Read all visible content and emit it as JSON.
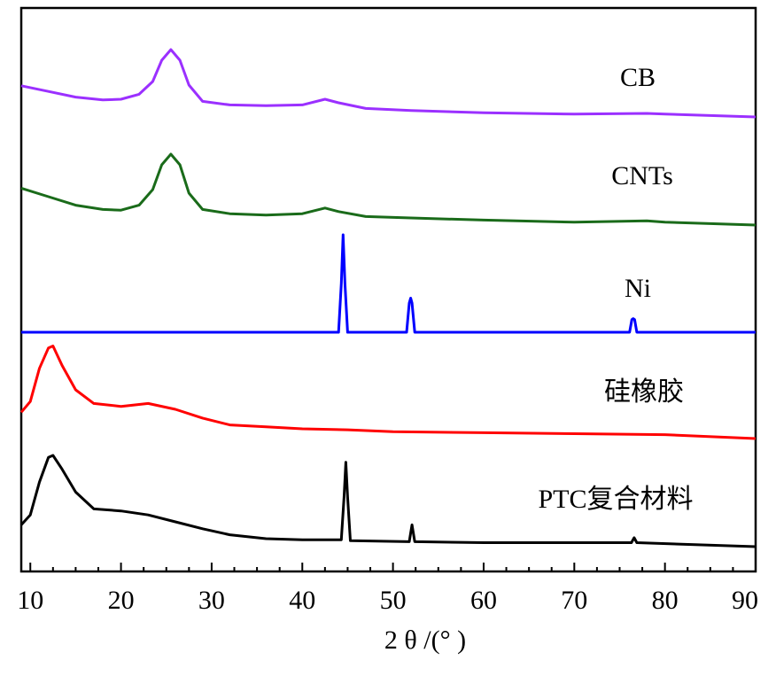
{
  "chart_data": {
    "type": "line",
    "title": "",
    "xlabel": "2 θ /(°  )",
    "ylabel": "",
    "xlim": [
      9,
      90
    ],
    "x_ticks": [
      10,
      20,
      30,
      40,
      50,
      60,
      70,
      80,
      90
    ],
    "y_ticks_shown": false,
    "grid": false,
    "legend": "inline labels at right of each trace",
    "series": [
      {
        "name": "CB",
        "color": "#9b30ff",
        "points": [
          [
            9,
            0.44
          ],
          [
            12,
            0.36
          ],
          [
            15,
            0.28
          ],
          [
            18,
            0.24
          ],
          [
            20,
            0.25
          ],
          [
            22,
            0.32
          ],
          [
            23.5,
            0.5
          ],
          [
            24.5,
            0.8
          ],
          [
            25.5,
            0.95
          ],
          [
            26.5,
            0.8
          ],
          [
            27.5,
            0.45
          ],
          [
            29,
            0.22
          ],
          [
            32,
            0.17
          ],
          [
            36,
            0.16
          ],
          [
            40,
            0.17
          ],
          [
            42.5,
            0.25
          ],
          [
            44,
            0.2
          ],
          [
            47,
            0.12
          ],
          [
            52,
            0.09
          ],
          [
            60,
            0.06
          ],
          [
            70,
            0.04
          ],
          [
            78,
            0.05
          ],
          [
            80,
            0.04
          ],
          [
            90,
            0.0
          ]
        ]
      },
      {
        "name": "CNTs",
        "color": "#1a6b1a",
        "points": [
          [
            9,
            0.52
          ],
          [
            12,
            0.4
          ],
          [
            15,
            0.28
          ],
          [
            18,
            0.22
          ],
          [
            20,
            0.21
          ],
          [
            22,
            0.28
          ],
          [
            23.5,
            0.5
          ],
          [
            24.5,
            0.85
          ],
          [
            25.5,
            1.0
          ],
          [
            26.5,
            0.85
          ],
          [
            27.5,
            0.45
          ],
          [
            29,
            0.22
          ],
          [
            32,
            0.16
          ],
          [
            36,
            0.14
          ],
          [
            40,
            0.16
          ],
          [
            42.5,
            0.24
          ],
          [
            44,
            0.19
          ],
          [
            47,
            0.12
          ],
          [
            52,
            0.1
          ],
          [
            60,
            0.07
          ],
          [
            70,
            0.04
          ],
          [
            78,
            0.06
          ],
          [
            80,
            0.04
          ],
          [
            90,
            0.0
          ]
        ]
      },
      {
        "name": "Ni",
        "color": "#0000ff",
        "points": [
          [
            9,
            0.0
          ],
          [
            44,
            0.0
          ],
          [
            44.3,
            0.5
          ],
          [
            44.5,
            1.0
          ],
          [
            44.7,
            0.5
          ],
          [
            45,
            0.0
          ],
          [
            51.5,
            0.0
          ],
          [
            51.8,
            0.3
          ],
          [
            51.95,
            0.35
          ],
          [
            52.1,
            0.3
          ],
          [
            52.4,
            0.0
          ],
          [
            76.1,
            0.0
          ],
          [
            76.35,
            0.13
          ],
          [
            76.5,
            0.14
          ],
          [
            76.65,
            0.13
          ],
          [
            76.9,
            0.0
          ],
          [
            90,
            0.0
          ]
        ]
      },
      {
        "name": "硅橡胶",
        "color": "#ff0000",
        "points": [
          [
            9,
            0.27
          ],
          [
            10,
            0.38
          ],
          [
            11,
            0.72
          ],
          [
            12,
            0.93
          ],
          [
            12.5,
            0.95
          ],
          [
            13.5,
            0.75
          ],
          [
            15,
            0.5
          ],
          [
            17,
            0.36
          ],
          [
            20,
            0.33
          ],
          [
            23,
            0.36
          ],
          [
            26,
            0.3
          ],
          [
            29,
            0.21
          ],
          [
            32,
            0.14
          ],
          [
            36,
            0.12
          ],
          [
            40,
            0.1
          ],
          [
            45,
            0.09
          ],
          [
            50,
            0.07
          ],
          [
            60,
            0.06
          ],
          [
            70,
            0.05
          ],
          [
            80,
            0.04
          ],
          [
            90,
            0.0
          ]
        ]
      },
      {
        "name": "PTC复合材料",
        "color": "#000000",
        "points": [
          [
            9,
            0.22
          ],
          [
            10,
            0.32
          ],
          [
            11,
            0.65
          ],
          [
            12,
            0.9
          ],
          [
            12.5,
            0.92
          ],
          [
            13.5,
            0.78
          ],
          [
            15,
            0.55
          ],
          [
            17,
            0.38
          ],
          [
            20,
            0.36
          ],
          [
            23,
            0.32
          ],
          [
            26,
            0.25
          ],
          [
            29,
            0.18
          ],
          [
            32,
            0.12
          ],
          [
            36,
            0.08
          ],
          [
            40,
            0.07
          ],
          [
            44.3,
            0.07
          ],
          [
            44.6,
            0.5
          ],
          [
            44.8,
            0.85
          ],
          [
            45,
            0.5
          ],
          [
            45.3,
            0.06
          ],
          [
            51.8,
            0.05
          ],
          [
            52.1,
            0.22
          ],
          [
            52.4,
            0.05
          ],
          [
            60,
            0.04
          ],
          [
            70,
            0.04
          ],
          [
            76.3,
            0.04
          ],
          [
            76.6,
            0.09
          ],
          [
            76.9,
            0.04
          ],
          [
            90,
            0.0
          ]
        ]
      }
    ]
  }
}
